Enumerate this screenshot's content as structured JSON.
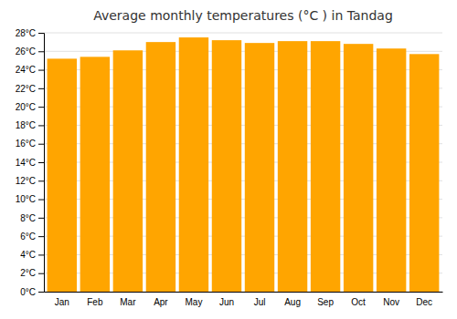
{
  "chart_data": {
    "type": "bar",
    "title": "Average monthly temperatures (°C ) in Tandag",
    "categories": [
      "Jan",
      "Feb",
      "Mar",
      "Apr",
      "May",
      "Jun",
      "Jul",
      "Aug",
      "Sep",
      "Oct",
      "Nov",
      "Dec"
    ],
    "values": [
      25.2,
      25.4,
      26.1,
      27.0,
      27.5,
      27.2,
      26.9,
      27.1,
      27.1,
      26.8,
      26.3,
      25.7
    ],
    "color": "#FFA500",
    "ylim": [
      0,
      28
    ],
    "yticks": [
      {
        "value": 0,
        "label": "0°C"
      },
      {
        "value": 2,
        "label": "2°C"
      },
      {
        "value": 4,
        "label": "4°C"
      },
      {
        "value": 6,
        "label": "6°C"
      },
      {
        "value": 8,
        "label": "8°C"
      },
      {
        "value": 10,
        "label": "10°C"
      },
      {
        "value": 12,
        "label": "12°C"
      },
      {
        "value": 14,
        "label": "14°C"
      },
      {
        "value": 16,
        "label": "16°C"
      },
      {
        "value": 18,
        "label": "18°C"
      },
      {
        "value": 20,
        "label": "20°C"
      },
      {
        "value": 22,
        "label": "22°C"
      },
      {
        "value": 24,
        "label": "24°C"
      },
      {
        "value": 26,
        "label": "26°C"
      },
      {
        "value": 28,
        "label": "28°C"
      }
    ],
    "grid": true
  }
}
